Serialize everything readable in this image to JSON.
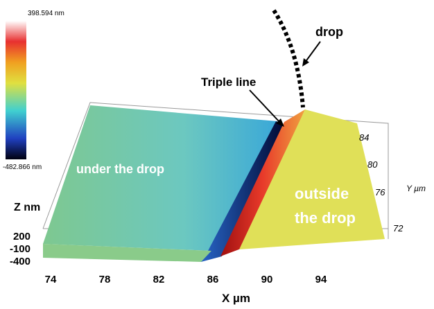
{
  "colorbar": {
    "max_label": "398.594 nm",
    "min_label": "-482.866 nm"
  },
  "annotations": {
    "drop": "drop",
    "triple_line": "Triple line",
    "under": "under the drop",
    "outside_1": "outside",
    "outside_2": "the drop"
  },
  "axes": {
    "x_label": "X µm",
    "y_label": "Y µm",
    "z_label": "Z nm",
    "x_ticks": [
      74,
      78,
      82,
      86,
      90,
      94
    ],
    "y_ticks": [
      84,
      80,
      76,
      72
    ],
    "z_ticks": [
      200,
      -100,
      -400
    ]
  }
}
